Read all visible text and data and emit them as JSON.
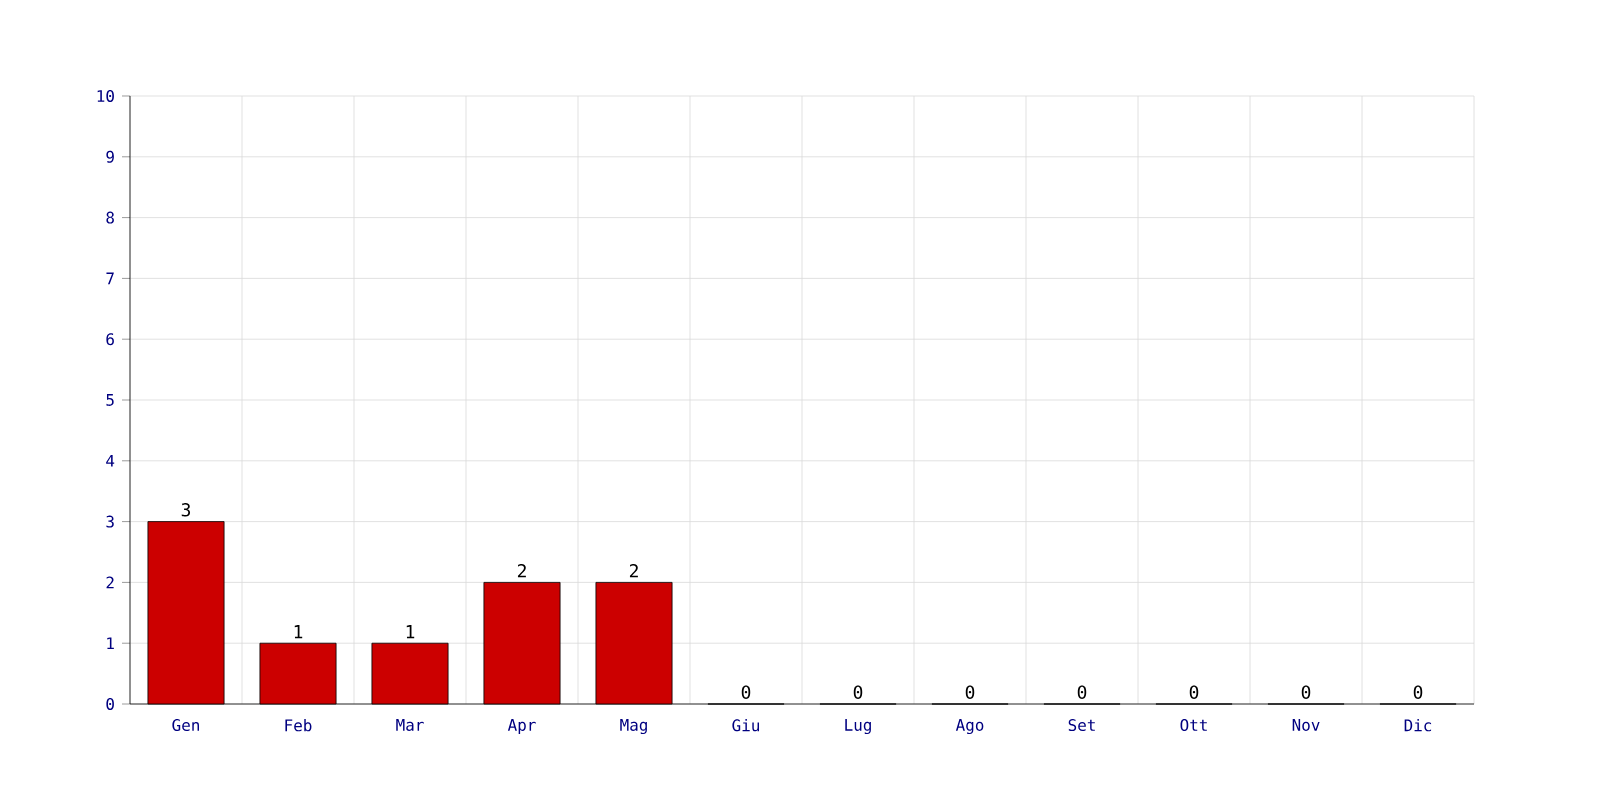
{
  "chart_data": {
    "type": "bar",
    "categories": [
      "Gen",
      "Feb",
      "Mar",
      "Apr",
      "Mag",
      "Giu",
      "Lug",
      "Ago",
      "Set",
      "Ott",
      "Nov",
      "Dic"
    ],
    "values": [
      3,
      1,
      1,
      2,
      2,
      0,
      0,
      0,
      0,
      0,
      0,
      0
    ],
    "color": "#cc0000",
    "ylim": [
      0,
      10
    ],
    "yticks": [
      0,
      1,
      2,
      3,
      4,
      5,
      6,
      7,
      8,
      9,
      10
    ],
    "grid": true,
    "data_labels": true
  }
}
